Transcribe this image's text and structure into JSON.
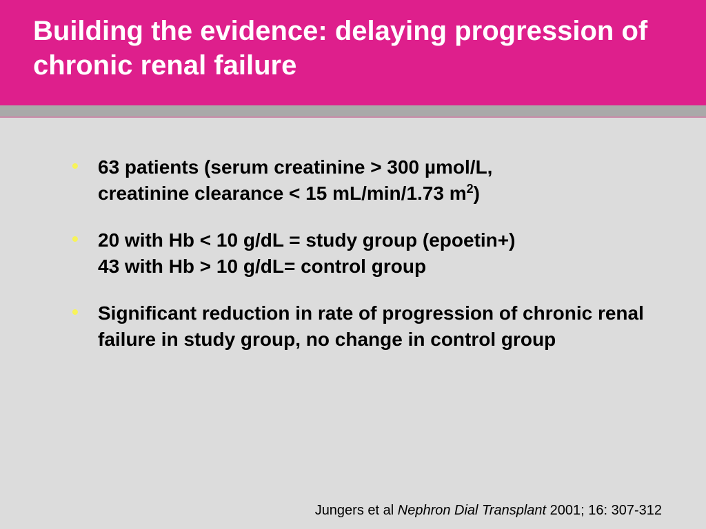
{
  "slide": {
    "title": "Building the evidence: delaying progression of chronic renal failure",
    "bullet_marker": "•",
    "bullets": [
      {
        "line1": "63 patients (serum creatinine > 300 µmol/L,",
        "line2_main": "creatinine clearance < 15 mL/min/1.73 m",
        "line2_sup": "2",
        "line2_end": ")"
      },
      {
        "line1": "20 with Hb < 10 g/dL = study group (epoetin+)",
        "line2": "43 with Hb > 10 g/dL= control group"
      },
      {
        "text": "Significant reduction in rate of progression of chronic renal failure in study group, no change in control group"
      }
    ],
    "citation": {
      "authors": "Jungers et al",
      "journal": "Nephron Dial Transplant",
      "details": "2001; 16: 307-312"
    }
  },
  "colors": {
    "header": "#de1f8c",
    "background": "#dcdcdc",
    "bullet": "#f7f35a",
    "rule": "#a9a9a9"
  }
}
